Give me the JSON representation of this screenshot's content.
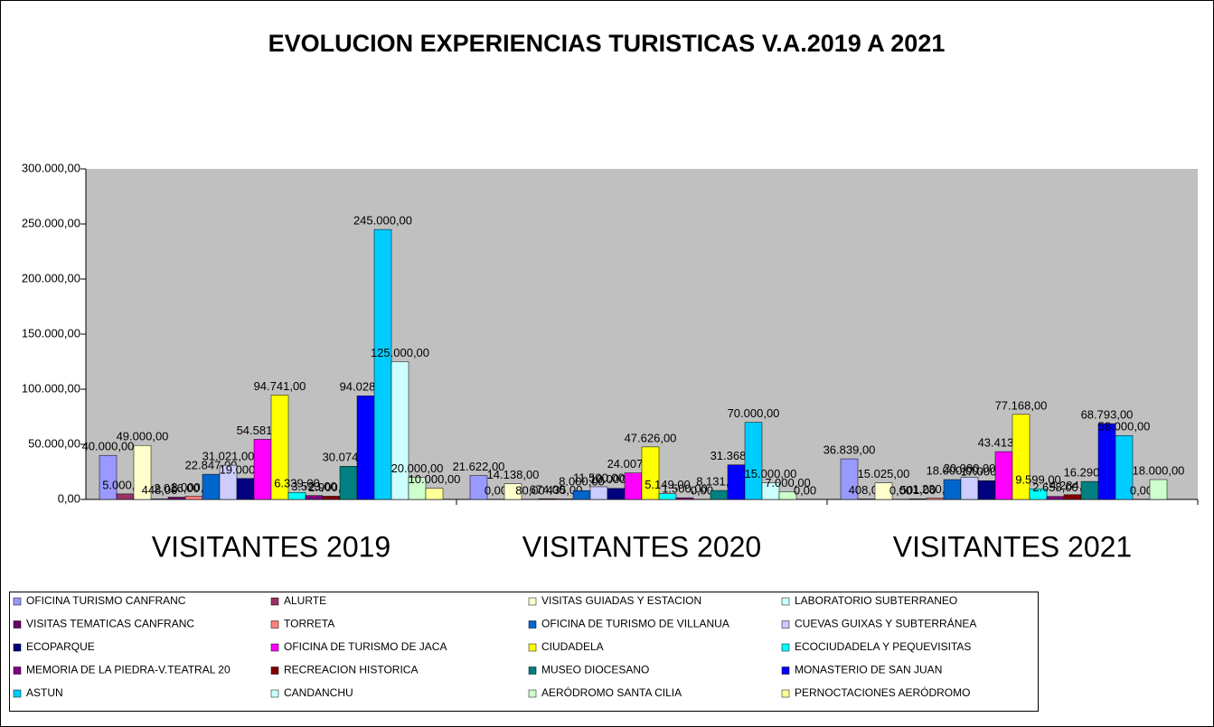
{
  "chart_data": {
    "type": "bar",
    "title": "EVOLUCION EXPERIENCIAS TURISTICAS V.A.2019 A 2021",
    "categories": [
      "VISITANTES 2019",
      "VISITANTES 2020",
      "VISITANTES 2021"
    ],
    "ylim": [
      0,
      300000
    ],
    "yticks": [
      {
        "value": 0,
        "label": "0,00"
      },
      {
        "value": 50000,
        "label": "50.000,00"
      },
      {
        "value": 100000,
        "label": "100.000,00"
      },
      {
        "value": 150000,
        "label": "150.000,00"
      },
      {
        "value": 200000,
        "label": "200.000,00"
      },
      {
        "value": 250000,
        "label": "250.000,00"
      },
      {
        "value": 300000,
        "label": "300.000,00"
      }
    ],
    "series": [
      {
        "name": "OFICINA TURISMO CANFRANC",
        "color": "#9999FF",
        "values": [
          40000,
          21622,
          36839
        ],
        "value_labels": [
          "40.000,00",
          "21.622,00",
          "36.839,00"
        ]
      },
      {
        "name": "ALURTE",
        "color": "#993366",
        "values": [
          5000,
          0,
          408
        ],
        "value_labels": [
          "5.000,00",
          "0,00",
          "408,00"
        ]
      },
      {
        "name": "VISITAS GUIADAS Y ESTACION",
        "color": "#FFFFCC",
        "values": [
          49000,
          14138,
          15025
        ],
        "value_labels": [
          "49.000,00",
          "14.138,00",
          "15.025,00"
        ]
      },
      {
        "name": "LABORATORIO SUBTERRANEO",
        "color": "#CCFFFF",
        "values": [
          448,
          80,
          0
        ],
        "value_labels": [
          "448,00",
          "80,00",
          "0,00"
        ]
      },
      {
        "name": "VISITAS TEMATICAS CANFRANC",
        "color": "#660066",
        "values": [
          2016,
          674,
          501
        ],
        "value_labels": [
          "2.016,00",
          "674,00",
          "501,00"
        ]
      },
      {
        "name": "TORRETA",
        "color": "#FF8080",
        "values": [
          3000,
          435,
          1230
        ],
        "value_labels": [
          "3.000,00",
          "435,00",
          "1.230,00"
        ]
      },
      {
        "name": "OFICINA DE TURISMO DE VILLANUA",
        "color": "#0066CC",
        "values": [
          22847,
          8000,
          18000
        ],
        "value_labels": [
          "22.847,00",
          "8.000,00",
          "18.000,00"
        ]
      },
      {
        "name": "CUEVAS GUIXAS Y SUBTERRÁNEA",
        "color": "#CCCCFF",
        "values": [
          31021,
          11500,
          20000
        ],
        "value_labels": [
          "31.021,00",
          "11.500,00",
          "20.000,00"
        ]
      },
      {
        "name": "ECOPARQUE",
        "color": "#000080",
        "values": [
          19000,
          10000,
          17000
        ],
        "value_labels": [
          "19.000,00",
          "10.000,00",
          "17.000,00"
        ]
      },
      {
        "name": "OFICINA DE TURISMO DE JACA",
        "color": "#FF00FF",
        "values": [
          54581,
          24007,
          43413
        ],
        "value_labels": [
          "54.581,00",
          "24.007,00",
          "43.413,00"
        ]
      },
      {
        "name": "CIUDADELA",
        "color": "#FFFF00",
        "values": [
          94741,
          47626,
          77168
        ],
        "value_labels": [
          "94.741,00",
          "47.626,00",
          "77.168,00"
        ]
      },
      {
        "name": "ECOCIUDADELA Y PEQUEVISITAS",
        "color": "#00FFFF",
        "values": [
          6339,
          5149,
          9599
        ],
        "value_labels": [
          "6.339,00",
          "5.149,00",
          "9.599,00"
        ]
      },
      {
        "name": "MEMORIA DE LA PIEDRA-V.TEATRAL 20",
        "color": "#800080",
        "values": [
          3523,
          1500,
          2658
        ],
        "value_labels": [
          "3.523,00",
          "1.500,00",
          "2.658,00"
        ]
      },
      {
        "name": "RECREACION HISTORICA",
        "color": "#800000",
        "values": [
          2900,
          0,
          4284
        ],
        "value_labels": [
          "2.900,00",
          "0,00",
          "4.284,00"
        ]
      },
      {
        "name": "MUSEO DIOCESANO",
        "color": "#008080",
        "values": [
          30074,
          8131,
          16290
        ],
        "value_labels": [
          "30.074,00",
          "8.131,00",
          "16.290,00"
        ]
      },
      {
        "name": "MONASTERIO DE SAN JUAN",
        "color": "#0000FF",
        "values": [
          94028,
          31368,
          68793
        ],
        "value_labels": [
          "94.028,00",
          "31.368,00",
          "68.793,00"
        ]
      },
      {
        "name": "ASTUN",
        "color": "#00CCFF",
        "values": [
          245000,
          70000,
          58000
        ],
        "value_labels": [
          "245.000,00",
          "70.000,00",
          "58.000,00"
        ]
      },
      {
        "name": "CANDANCHU",
        "color": "#CCFFFF",
        "values": [
          125000,
          15000,
          0
        ],
        "value_labels": [
          "125.000,00",
          "15.000,00",
          "0,00"
        ]
      },
      {
        "name": "AERÓDROMO SANTA CILIA",
        "color": "#CCFFCC",
        "values": [
          20000,
          7000,
          18000
        ],
        "value_labels": [
          "20.000,00",
          "7.000,00",
          "18.000,00"
        ]
      },
      {
        "name": "PERNOCTACIONES AERÓDROMO",
        "color": "#FFFF99",
        "values": [
          10000,
          0,
          null
        ],
        "value_labels": [
          "10.000,00",
          "0,00",
          null
        ]
      }
    ]
  }
}
